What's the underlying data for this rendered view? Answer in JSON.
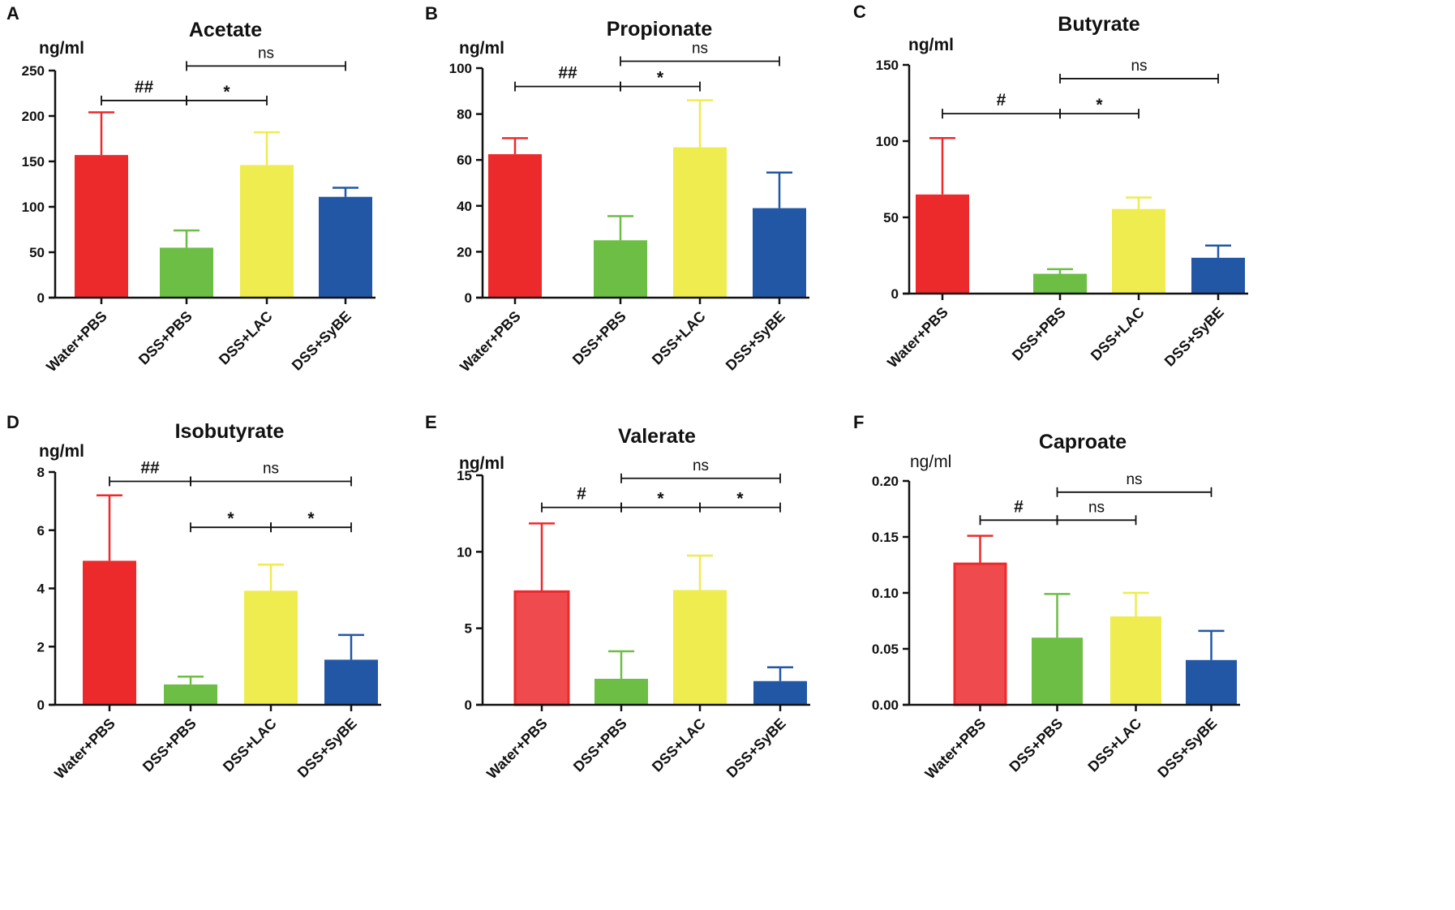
{
  "colors": {
    "water_pbs": "#ec2a2c",
    "water_pbs_light": "#ef4b4e",
    "dss_pbs": "#6dbe45",
    "dss_lac": "#eeec4f",
    "dss_sybe": "#2257a6",
    "axis": "#111111"
  },
  "chart_data": [
    {
      "panel": "A",
      "type": "bar",
      "title": "Acetate",
      "ylabel": "ng/ml",
      "categories": [
        "Water+PBS",
        "DSS+PBS",
        "DSS+LAC",
        "DSS+SyBE"
      ],
      "values": [
        157,
        55,
        146,
        111
      ],
      "errors": [
        47,
        19,
        36,
        10
      ],
      "ylim": [
        0,
        250
      ],
      "yticks": [
        0,
        50,
        100,
        150,
        200,
        250
      ],
      "tick_labels": [
        "0",
        "50",
        "100",
        "150",
        "200",
        "250"
      ],
      "significance": [
        {
          "from": 0,
          "to": 1,
          "y": 217,
          "label": "##"
        },
        {
          "from": 1,
          "to": 2,
          "y": 217,
          "label": "*"
        },
        {
          "from": 1,
          "to": 3,
          "y": 255,
          "label": "ns"
        }
      ]
    },
    {
      "panel": "B",
      "type": "bar",
      "title": "Propionate",
      "ylabel": "ng/ml",
      "categories": [
        "Water+PBS",
        "DSS+PBS",
        "DSS+LAC",
        "DSS+SyBE"
      ],
      "values": [
        62.5,
        25,
        65.5,
        39
      ],
      "errors": [
        7,
        10.5,
        20.5,
        15.5
      ],
      "ylim": [
        0,
        100
      ],
      "yticks": [
        0,
        20,
        40,
        60,
        80,
        100
      ],
      "tick_labels": [
        "0",
        "20",
        "40",
        "60",
        "80",
        "100"
      ],
      "significance": [
        {
          "from": 0,
          "to": 1,
          "y": 92,
          "label": "##"
        },
        {
          "from": 1,
          "to": 2,
          "y": 92,
          "label": "*"
        },
        {
          "from": 1,
          "to": 3,
          "y": 103,
          "label": "ns"
        }
      ]
    },
    {
      "panel": "C",
      "type": "bar",
      "title": "Butyrate",
      "ylabel": "ng/ml",
      "categories": [
        "Water+PBS",
        "DSS+PBS",
        "DSS+LAC",
        "DSS+SyBE"
      ],
      "values": [
        65,
        13,
        55.5,
        23.5
      ],
      "errors": [
        37,
        3,
        7.5,
        8
      ],
      "ylim": [
        0,
        150
      ],
      "yticks": [
        0,
        50,
        100,
        150
      ],
      "tick_labels": [
        "0",
        "50",
        "100",
        "150"
      ],
      "significance": [
        {
          "from": 0,
          "to": 1,
          "y": 118,
          "label": "#"
        },
        {
          "from": 1,
          "to": 2,
          "y": 118,
          "label": "*"
        },
        {
          "from": 1,
          "to": 3,
          "y": 141,
          "label": "ns"
        }
      ]
    },
    {
      "panel": "D",
      "type": "bar",
      "title": "Isobutyrate",
      "ylabel": "ng/ml",
      "categories": [
        "Water+PBS",
        "DSS+PBS",
        "DSS+LAC",
        "DSS+SyBE"
      ],
      "values": [
        4.95,
        0.7,
        3.92,
        1.55
      ],
      "errors": [
        2.25,
        0.27,
        0.9,
        0.85
      ],
      "ylim": [
        0,
        8
      ],
      "yticks": [
        0,
        2,
        4,
        6,
        8
      ],
      "tick_labels": [
        "0",
        "2",
        "4",
        "6",
        "8"
      ],
      "significance": [
        {
          "from": 0,
          "to": 1,
          "y": 7.68,
          "label": "##"
        },
        {
          "from": 1,
          "to": 3,
          "y": 7.68,
          "label": "ns"
        },
        {
          "from": 1,
          "to": 2,
          "y": 6.1,
          "label": "*"
        },
        {
          "from": 2,
          "to": 3,
          "y": 6.1,
          "label": "*"
        }
      ]
    },
    {
      "panel": "E",
      "type": "bar",
      "title": "Valerate",
      "ylabel": "ng/ml",
      "categories": [
        "Water+PBS",
        "DSS+PBS",
        "DSS+LAC",
        "DSS+SyBE"
      ],
      "values": [
        7.4,
        1.7,
        7.5,
        1.55
      ],
      "errors": [
        4.45,
        1.8,
        2.25,
        0.9
      ],
      "ylim": [
        0,
        15
      ],
      "yticks": [
        0,
        5,
        10,
        15
      ],
      "tick_labels": [
        "0",
        "5",
        "10",
        "15"
      ],
      "significance": [
        {
          "from": 0,
          "to": 1,
          "y": 12.9,
          "label": "#"
        },
        {
          "from": 1,
          "to": 2,
          "y": 12.9,
          "label": "*"
        },
        {
          "from": 2,
          "to": 3,
          "y": 12.9,
          "label": "*"
        },
        {
          "from": 1,
          "to": 3,
          "y": 14.8,
          "label": "ns"
        }
      ]
    },
    {
      "panel": "F",
      "type": "bar",
      "title": "Caproate",
      "ylabel": "ng/ml",
      "categories": [
        "Water+PBS",
        "DSS+PBS",
        "DSS+LAC",
        "DSS+SyBE"
      ],
      "values": [
        0.126,
        0.06,
        0.079,
        0.04
      ],
      "errors": [
        0.025,
        0.039,
        0.021,
        0.026
      ],
      "ylim": [
        0,
        0.2
      ],
      "yticks": [
        0,
        0.05,
        0.1,
        0.15,
        0.2
      ],
      "tick_labels": [
        "0.00",
        "0.05",
        "0.10",
        "0.15",
        "0.20"
      ],
      "significance": [
        {
          "from": 0,
          "to": 1,
          "y": 0.165,
          "label": "#"
        },
        {
          "from": 1,
          "to": 2,
          "y": 0.165,
          "label": "ns"
        },
        {
          "from": 1,
          "to": 3,
          "y": 0.19,
          "label": "ns"
        }
      ]
    }
  ]
}
